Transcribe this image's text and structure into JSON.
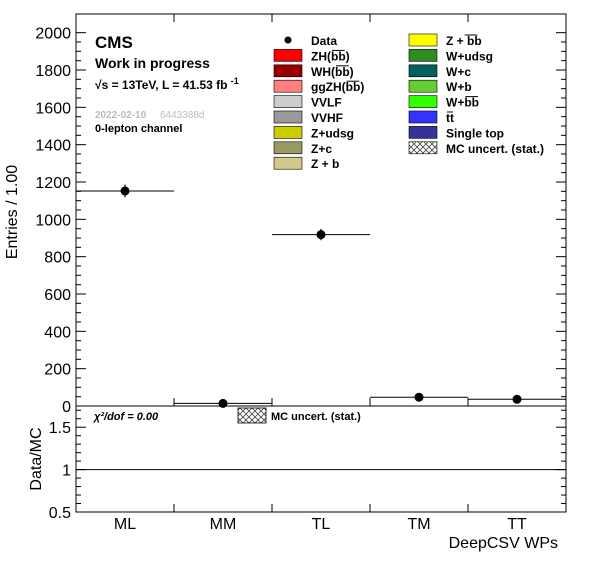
{
  "chart_data": [
    {
      "type": "scatter",
      "ylabel": "Entries / 1.00",
      "ylim": [
        0,
        2100
      ],
      "yticks": [
        0,
        200,
        400,
        600,
        800,
        1000,
        1200,
        1400,
        1600,
        1800,
        2000
      ],
      "categories": [
        "ML",
        "MM",
        "TL",
        "TM",
        "TT"
      ],
      "series": [
        {
          "name": "Data",
          "values": [
            1152,
            14,
            918,
            47,
            36
          ],
          "errors": [
            34,
            4,
            30,
            7,
            6
          ]
        }
      ],
      "mc_stack_bin_totals": [
        1152,
        14,
        918,
        47,
        36
      ],
      "mc_stack_color": "#d2c88c",
      "header": {
        "experiment": "CMS",
        "status": "Work in progress",
        "energy_lumi_prefix": "√s = 13TeV, L = 41.53 fb",
        "energy_lumi_exp": "-1",
        "date": "2022-02-10",
        "hash": "6443388d",
        "channel": "0-lepton channel"
      },
      "legend": {
        "placement": "top-right",
        "entries": [
          {
            "label": "Data",
            "kind": "marker"
          },
          {
            "label": "Z + bb",
            "kind": "fill",
            "color": "#ffff00",
            "overline": "bb"
          },
          {
            "label": "ZH(bb)",
            "kind": "fill",
            "color": "#ff0000",
            "overline": "bb"
          },
          {
            "label": "W+udsg",
            "kind": "fill",
            "color": "#2e8b1e"
          },
          {
            "label": "WH(bb)",
            "kind": "fill",
            "color": "#990000",
            "overline": "bb"
          },
          {
            "label": "W+c",
            "kind": "fill",
            "color": "#006060"
          },
          {
            "label": "ggZH(bb)",
            "kind": "fill",
            "color": "#ff7f7f",
            "overline": "bb"
          },
          {
            "label": "W+b",
            "kind": "fill",
            "color": "#66cc33"
          },
          {
            "label": "VVLF",
            "kind": "fill",
            "color": "#cccccc"
          },
          {
            "label": "W+bb",
            "kind": "fill",
            "color": "#33ff00",
            "overline": "bb"
          },
          {
            "label": "VVHF",
            "kind": "fill",
            "color": "#999999"
          },
          {
            "label": "tt",
            "kind": "fill",
            "color": "#3333ff",
            "overline": "tt"
          },
          {
            "label": "Z+udsg",
            "kind": "fill",
            "color": "#cccc00"
          },
          {
            "label": "Single top",
            "kind": "fill",
            "color": "#333399"
          },
          {
            "label": "Z+c",
            "kind": "fill",
            "color": "#999966"
          },
          {
            "label": "MC uncert. (stat.)",
            "kind": "hatch"
          },
          {
            "label": "Z + b",
            "kind": "fill",
            "color": "#d2c88c"
          }
        ]
      }
    },
    {
      "type": "line",
      "ylabel": "Data/MC",
      "xlabel": "DeepCSV WPs",
      "ylim": [
        0.5,
        1.75
      ],
      "yticks": [
        0.5,
        1,
        1.5
      ],
      "categories": [
        "ML",
        "MM",
        "TL",
        "TM",
        "TT"
      ],
      "series": [
        {
          "name": "",
          "values": [
            1,
            1,
            1,
            1,
            1
          ]
        }
      ],
      "reference_line": 1,
      "chi2_label": "χ²/dof = 0.00",
      "legend": {
        "placement": "top-center",
        "entries": [
          {
            "label": "MC uncert. (stat.)",
            "kind": "hatch"
          }
        ]
      }
    }
  ]
}
